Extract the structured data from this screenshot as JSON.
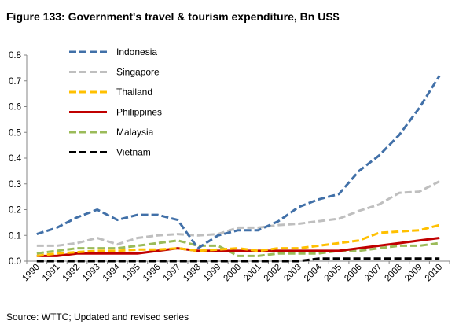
{
  "figure_title": "Figure 133: Government's travel & tourism expenditure, Bn US$",
  "source": "Source: WTTC; Updated and revised series",
  "chart_data": {
    "type": "line",
    "title": "Figure 133: Government's travel & tourism expenditure, Bn US$",
    "xlabel": "",
    "ylabel": "",
    "x": [
      "1990",
      "1991",
      "1992",
      "1993",
      "1994",
      "1995",
      "1996",
      "1997",
      "1998",
      "1999",
      "2000",
      "2001",
      "2002",
      "2003",
      "2004",
      "2005",
      "2006",
      "2007",
      "2008",
      "2009",
      "2010"
    ],
    "ylim": [
      0,
      0.8
    ],
    "yticks": [
      "0.0",
      "0.1",
      "0.2",
      "0.3",
      "0.4",
      "0.5",
      "0.6",
      "0.7",
      "0.8"
    ],
    "grid": false,
    "legend_position": "top-left",
    "series": [
      {
        "name": "Indonesia",
        "color": "#4170A8",
        "dash": "dashed",
        "values": [
          0.105,
          0.13,
          0.17,
          0.2,
          0.16,
          0.18,
          0.18,
          0.16,
          0.05,
          0.1,
          0.12,
          0.12,
          0.155,
          0.21,
          0.24,
          0.26,
          0.35,
          0.41,
          0.49,
          0.595,
          0.72
        ]
      },
      {
        "name": "Singapore",
        "color": "#BFBFBF",
        "dash": "dashed",
        "values": [
          0.06,
          0.06,
          0.07,
          0.09,
          0.065,
          0.09,
          0.1,
          0.105,
          0.1,
          0.105,
          0.13,
          0.13,
          0.14,
          0.145,
          0.155,
          0.165,
          0.195,
          0.22,
          0.265,
          0.27,
          0.31
        ]
      },
      {
        "name": "Thailand",
        "color": "#FFC000",
        "dash": "dashed",
        "values": [
          0.02,
          0.03,
          0.035,
          0.04,
          0.04,
          0.045,
          0.045,
          0.05,
          0.04,
          0.045,
          0.05,
          0.04,
          0.05,
          0.05,
          0.06,
          0.07,
          0.08,
          0.11,
          0.115,
          0.12,
          0.14
        ]
      },
      {
        "name": "Philippines",
        "color": "#C00000",
        "dash": "solid",
        "values": [
          0.02,
          0.02,
          0.03,
          0.03,
          0.03,
          0.03,
          0.04,
          0.05,
          0.04,
          0.04,
          0.04,
          0.04,
          0.04,
          0.04,
          0.04,
          0.04,
          0.05,
          0.06,
          0.07,
          0.08,
          0.09
        ]
      },
      {
        "name": "Malaysia",
        "color": "#9BBB59",
        "dash": "dashed",
        "values": [
          0.03,
          0.04,
          0.05,
          0.05,
          0.05,
          0.06,
          0.07,
          0.08,
          0.06,
          0.06,
          0.02,
          0.02,
          0.03,
          0.03,
          0.03,
          0.04,
          0.04,
          0.05,
          0.06,
          0.06,
          0.07
        ]
      },
      {
        "name": "Vietnam",
        "color": "#000000",
        "dash": "dashed",
        "values": [
          0.0,
          0.0,
          0.0,
          0.0,
          0.0,
          0.0,
          0.0,
          0.0,
          0.0,
          0.0,
          0.0,
          0.0,
          0.0,
          0.0,
          0.01,
          0.01,
          0.01,
          0.01,
          0.01,
          0.01,
          0.01
        ]
      }
    ]
  }
}
